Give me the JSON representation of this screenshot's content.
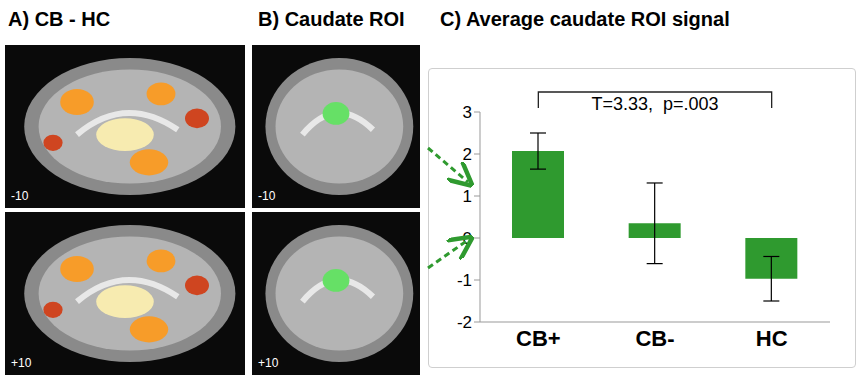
{
  "panels": [
    {
      "title": "A) CB - HC",
      "slices": [
        "-10",
        "+10"
      ]
    },
    {
      "title": "B) Caudate ROI",
      "slices": [
        "-10",
        "+10"
      ]
    }
  ],
  "chart_data": {
    "type": "bar",
    "title": "C) Average caudate ROI signal",
    "categories": [
      "CB+",
      "CB-",
      "HC"
    ],
    "values": [
      2.07,
      0.35,
      -0.97
    ],
    "errors": [
      0.43,
      0.96,
      0.53
    ],
    "color": "#2f9a2f",
    "ylim": [
      -2,
      3
    ],
    "yticks": [
      -2,
      -1,
      0,
      1,
      2,
      3
    ],
    "grid": false,
    "annotation": "T=3.33,  p=.003"
  }
}
